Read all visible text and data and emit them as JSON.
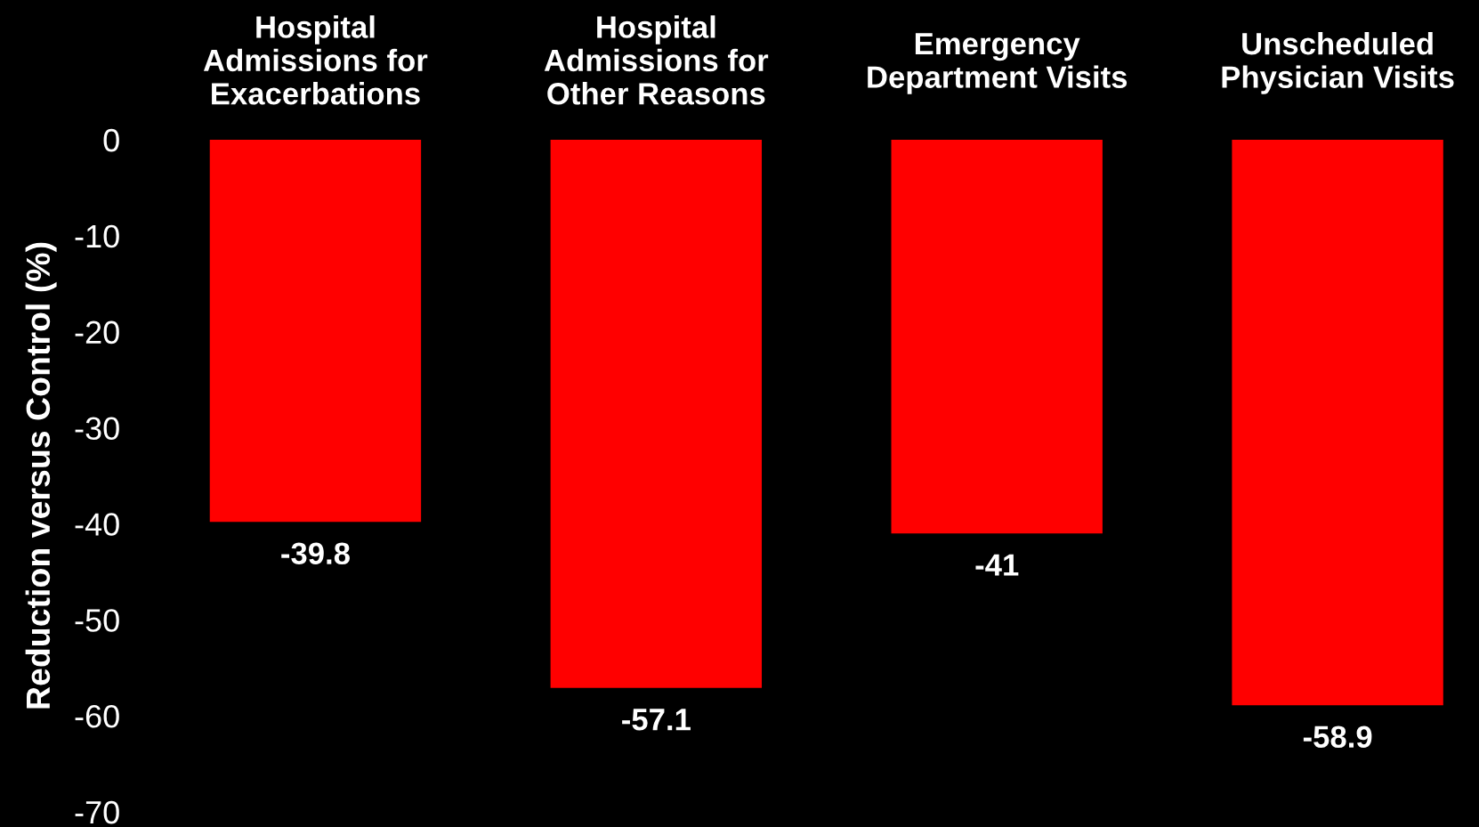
{
  "chart_data": {
    "type": "bar",
    "ylabel": "Reduction versus Control (%)",
    "categories": [
      "Hospital\nAdmissions for\nExacerbations",
      "Hospital\nAdmissions for\nOther Reasons",
      "Emergency\nDepartment Visits",
      "Unscheduled\nPhysician Visits"
    ],
    "values": [
      -39.8,
      -57.1,
      -41,
      -58.9
    ],
    "color": "#ff0000",
    "ylim": [
      -70,
      0
    ],
    "yticks": [
      0,
      -10,
      -20,
      -30,
      -40,
      -50,
      -60,
      -70
    ],
    "data_labels": true
  }
}
